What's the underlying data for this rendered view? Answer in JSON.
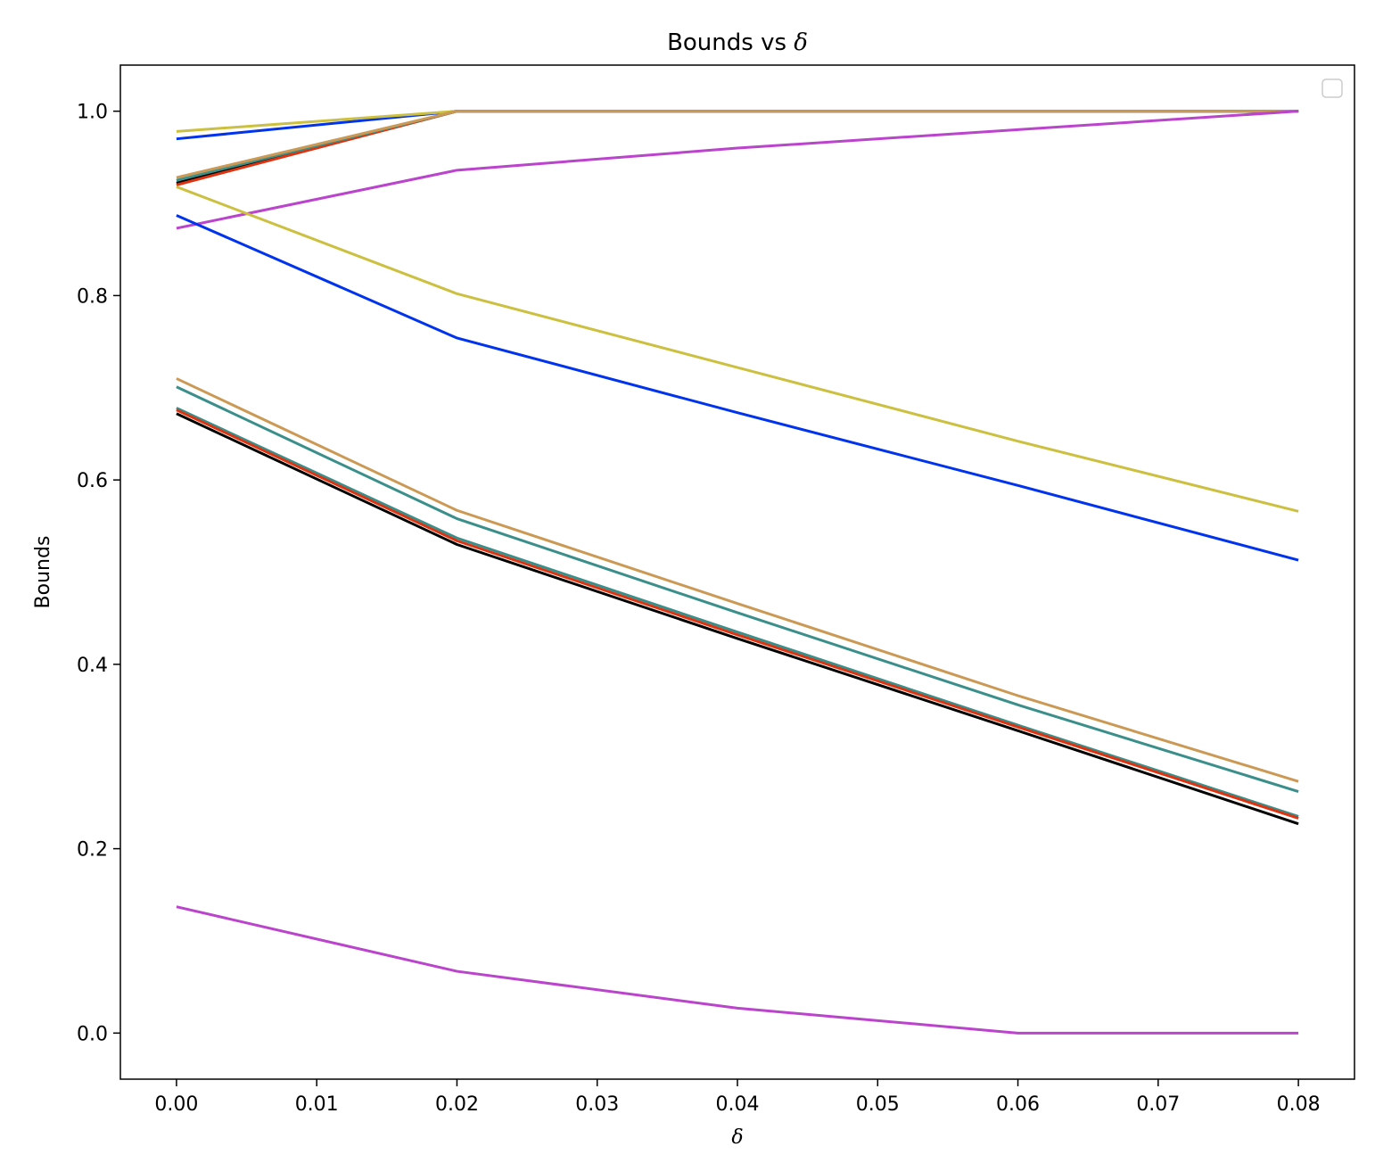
{
  "chart_data": {
    "type": "line",
    "title": "Bounds vs ",
    "title_symbol": "δ",
    "xlabel": "δ",
    "ylabel": "Bounds",
    "xlim": [
      -0.004,
      0.084
    ],
    "ylim": [
      -0.05,
      1.05
    ],
    "xticks": [
      "0.00",
      "0.01",
      "0.02",
      "0.03",
      "0.04",
      "0.05",
      "0.06",
      "0.07",
      "0.08"
    ],
    "yticks": [
      "0.0",
      "0.2",
      "0.4",
      "0.6",
      "0.8",
      "1.0"
    ],
    "grid": false,
    "legend": "top-right, empty",
    "x": [
      0.0,
      0.02,
      0.04,
      0.06,
      0.08
    ],
    "series": [
      {
        "color": "#0033ee",
        "values": [
          0.97,
          1.0,
          1.0,
          1.0,
          1.0
        ]
      },
      {
        "color": "#ccc040",
        "values": [
          0.978,
          1.0,
          1.0,
          1.0,
          1.0
        ]
      },
      {
        "color": "#000000",
        "values": [
          0.922,
          1.0,
          1.0,
          1.0,
          1.0
        ]
      },
      {
        "color": "#dd3311",
        "values": [
          0.92,
          1.0,
          1.0,
          1.0,
          1.0
        ]
      },
      {
        "color": "#3a8f8a",
        "values": [
          0.925,
          1.0,
          1.0,
          1.0,
          1.0
        ]
      },
      {
        "color": "#cc9955",
        "values": [
          0.928,
          1.0,
          1.0,
          1.0,
          1.0
        ]
      },
      {
        "color": "#bb44cc",
        "values": [
          0.873,
          0.936,
          0.96,
          0.98,
          1.0
        ]
      },
      {
        "color": "#ccc040",
        "values": [
          0.918,
          0.802,
          0.722,
          0.642,
          0.566
        ]
      },
      {
        "color": "#0033ee",
        "values": [
          0.887,
          0.754,
          0.673,
          0.594,
          0.513
        ]
      },
      {
        "color": "#cc9955",
        "values": [
          0.71,
          0.567,
          0.466,
          0.366,
          0.273
        ]
      },
      {
        "color": "#3a8f8a",
        "values": [
          0.701,
          0.558,
          0.456,
          0.356,
          0.262
        ]
      },
      {
        "color": "#3a8f8a",
        "values": [
          0.678,
          0.537,
          0.435,
          0.334,
          0.235
        ]
      },
      {
        "color": "#dd3311",
        "values": [
          0.676,
          0.534,
          0.432,
          0.332,
          0.233
        ]
      },
      {
        "color": "#000000",
        "values": [
          0.672,
          0.53,
          0.428,
          0.328,
          0.227
        ]
      },
      {
        "color": "#bb44cc",
        "values": [
          0.137,
          0.067,
          0.027,
          0.0,
          0.0
        ]
      }
    ]
  }
}
